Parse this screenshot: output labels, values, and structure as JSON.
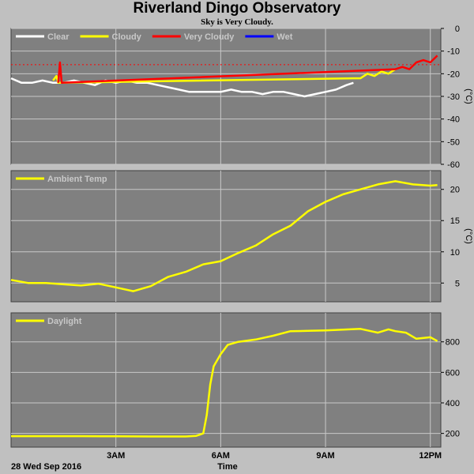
{
  "header": {
    "title": "Riverland Dingo Observatory",
    "subtitle": "Sky is Very Cloudy."
  },
  "footer": {
    "date_label": "28 Wed Sep 2016",
    "x_axis_label": "Time"
  },
  "colors": {
    "plot_bg": "#808080",
    "frame_bg": "#c0c0c0",
    "grid": "#c8c8c8",
    "clear": "#ffffff",
    "cloudy": "#ffff00",
    "very_cloudy": "#ff0000",
    "wet": "#0000ff"
  },
  "chart_data": [
    {
      "type": "line",
      "xlim": [
        0,
        12.3
      ],
      "ylim": [
        -60,
        0
      ],
      "yticks": [
        0,
        -10,
        -20,
        -30,
        -40,
        -50,
        -60
      ],
      "ylabel": "(°C)",
      "xticks": [
        3,
        6,
        9,
        12
      ],
      "xtick_labels": [
        "",
        "",
        "",
        ""
      ],
      "threshold_line": -16,
      "legend": [
        {
          "name": "Clear",
          "color": "#ffffff"
        },
        {
          "name": "Cloudy",
          "color": "#ffff00"
        },
        {
          "name": "Very Cloudy",
          "color": "#ff0000"
        },
        {
          "name": "Wet",
          "color": "#0000ff"
        }
      ],
      "series": [
        {
          "name": "Clear",
          "color": "#ffffff",
          "x": [
            0.0,
            0.3,
            0.6,
            0.9,
            1.2,
            1.5,
            1.8,
            2.1,
            2.4,
            2.7,
            3.0,
            3.3,
            3.6,
            3.9,
            4.2,
            4.5,
            4.8,
            5.1,
            5.4,
            5.7,
            6.0,
            6.3,
            6.6,
            6.9,
            7.2,
            7.5,
            7.8,
            8.1,
            8.4,
            8.7,
            9.0,
            9.3,
            9.6,
            9.8
          ],
          "y": [
            -22,
            -24,
            -24,
            -23,
            -24,
            -24,
            -23,
            -24,
            -25,
            -23,
            -24,
            -23,
            -24,
            -24,
            -25,
            -26,
            -27,
            -28,
            -28,
            -28,
            -28,
            -27,
            -28,
            -28,
            -29,
            -28,
            -28,
            -29,
            -30,
            -29,
            -28,
            -27,
            -25,
            -24
          ]
        },
        {
          "name": "Cloudy",
          "color": "#ffff00",
          "x": [
            1.2,
            1.3,
            1.35,
            9.8,
            10.0,
            10.2,
            10.4,
            10.6,
            10.8,
            11.0
          ],
          "y": [
            -23,
            -21,
            -24,
            -22,
            -22,
            -20,
            -21,
            -19,
            -20,
            -18
          ]
        },
        {
          "name": "Very Cloudy",
          "color": "#ff0000",
          "x": [
            1.35,
            1.4,
            1.45,
            11.0,
            11.2,
            11.4,
            11.6,
            11.8,
            12.0,
            12.2
          ],
          "y": [
            -24,
            -15,
            -24,
            -18,
            -17,
            -18,
            -15,
            -14,
            -15,
            -12
          ]
        }
      ]
    },
    {
      "type": "line",
      "xlim": [
        0,
        12.3
      ],
      "ylim": [
        2,
        23
      ],
      "yticks": [
        5,
        10,
        15,
        20
      ],
      "ylabel": "(°C)",
      "xticks": [
        3,
        6,
        9,
        12
      ],
      "xtick_labels": [
        "",
        "",
        "",
        ""
      ],
      "legend": [
        {
          "name": "Ambient Temp",
          "color": "#ffff00"
        }
      ],
      "series": [
        {
          "name": "Ambient Temp",
          "color": "#ffff00",
          "x": [
            0.0,
            0.5,
            1.0,
            1.5,
            2.0,
            2.5,
            3.0,
            3.5,
            4.0,
            4.5,
            5.0,
            5.5,
            6.0,
            6.5,
            7.0,
            7.5,
            8.0,
            8.5,
            9.0,
            9.5,
            10.0,
            10.5,
            11.0,
            11.5,
            12.0,
            12.2
          ],
          "y": [
            5.5,
            5.0,
            5.0,
            4.8,
            4.6,
            4.9,
            4.3,
            3.7,
            4.5,
            6.0,
            6.8,
            8.0,
            8.5,
            9.8,
            11.0,
            12.8,
            14.2,
            16.5,
            18.0,
            19.2,
            20.0,
            20.8,
            21.3,
            20.8,
            20.6,
            20.7
          ]
        }
      ]
    },
    {
      "type": "line",
      "xlim": [
        0,
        12.3
      ],
      "ylim": [
        110,
        990
      ],
      "yticks": [
        200,
        400,
        600,
        800
      ],
      "xticks": [
        3,
        6,
        9,
        12
      ],
      "xtick_labels": [
        "3AM",
        "6AM",
        "9AM",
        "12PM"
      ],
      "xlabel": "Time",
      "legend": [
        {
          "name": "Daylight",
          "color": "#ffff00"
        }
      ],
      "series": [
        {
          "name": "Daylight",
          "color": "#ffff00",
          "x": [
            0.0,
            1.0,
            2.0,
            3.0,
            4.0,
            5.0,
            5.3,
            5.5,
            5.6,
            5.7,
            5.8,
            6.0,
            6.2,
            6.5,
            7.0,
            7.5,
            8.0,
            8.5,
            9.0,
            9.5,
            10.0,
            10.3,
            10.5,
            10.8,
            11.0,
            11.3,
            11.6,
            12.0,
            12.2
          ],
          "y": [
            182,
            182,
            182,
            181,
            180,
            180,
            184,
            200,
            320,
            520,
            640,
            720,
            780,
            800,
            815,
            840,
            870,
            872,
            875,
            880,
            885,
            870,
            860,
            882,
            870,
            860,
            820,
            830,
            805
          ]
        }
      ]
    }
  ]
}
